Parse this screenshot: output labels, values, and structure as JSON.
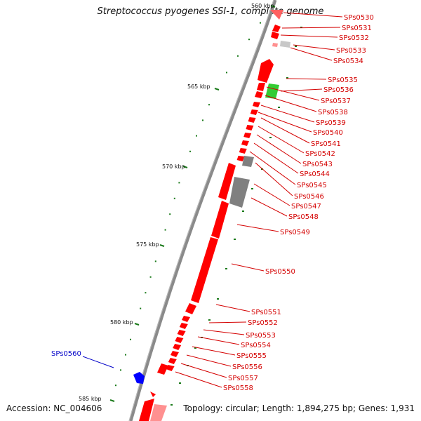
{
  "title": "Streptococcus pyogenes SSI-1, complete genome",
  "footer": {
    "accession": "Accession: NC_004606",
    "topology": "Topology: circular; Length: 1,894,275 bp; Genes: 1,931"
  },
  "ruler_labels": [
    "560 kbp",
    "565 kbp",
    "570 kbp",
    "575 kbp",
    "580 kbp",
    "585 kbp"
  ],
  "gene_labels": [
    "SPs0530",
    "SPs0531",
    "SPs0532",
    "SPs0533",
    "SPs0534",
    "SPs0535",
    "SPs0536",
    "SPs0537",
    "SPs0538",
    "SPs0539",
    "SPs0540",
    "SPs0541",
    "SPs0542",
    "SPs0543",
    "SPs0544",
    "SPs0545",
    "SPs0546",
    "SPs0547",
    "SPs0548",
    "SPs0549",
    "SPs0550",
    "SPs0551",
    "SPs0552",
    "SPs0553",
    "SPs0554",
    "SPs0555",
    "SPs0556",
    "SPs0557",
    "SPs0558"
  ],
  "left_gene_label": "SPs0560",
  "colors": {
    "forward_gene": "#ff0000",
    "highlight_gene": "#33cc33",
    "grey_gene": "#808080",
    "left_gene": "#0000ff",
    "label_red": "#d40000",
    "label_blue": "#0000c8",
    "tick_green": "#1a7a1a",
    "backbone": "#8a8a8a"
  }
}
